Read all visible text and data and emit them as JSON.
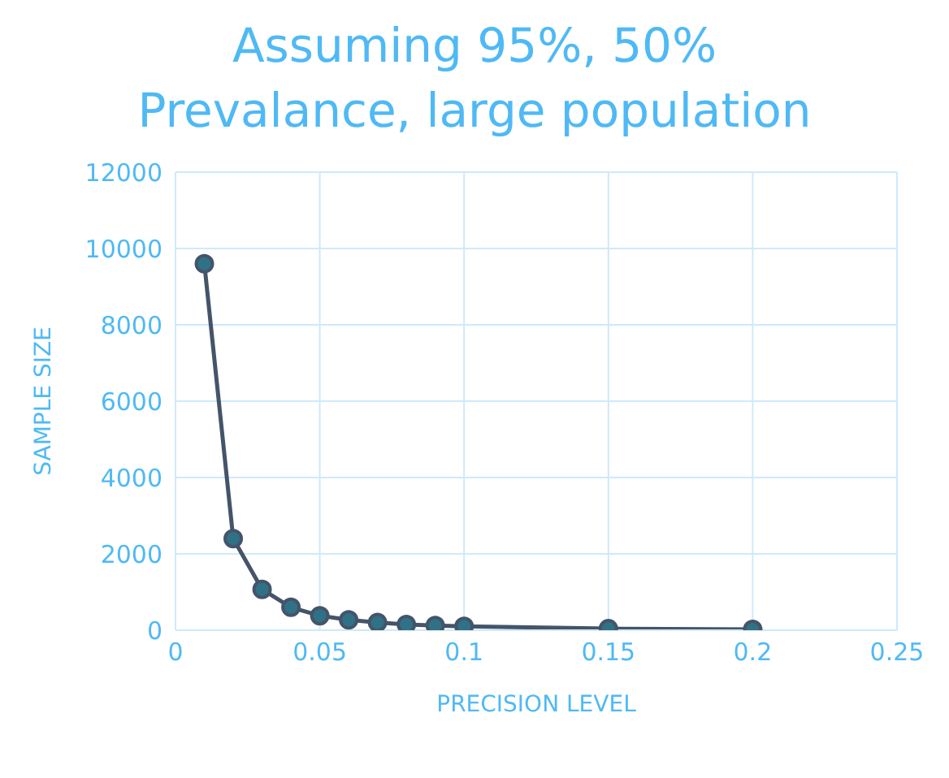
{
  "chart_data": {
    "type": "line",
    "title": "Assuming 95%, 50%\nPrevalance, large population",
    "xlabel": "PRECISION LEVEL",
    "ylabel": "SAMPLE SIZE",
    "x": [
      0.01,
      0.02,
      0.03,
      0.04,
      0.05,
      0.06,
      0.07,
      0.08,
      0.09,
      0.1,
      0.15,
      0.2
    ],
    "series": [
      {
        "color": "#44546a",
        "values": [
          9600,
          2400,
          1070,
          600,
          380,
          270,
          200,
          150,
          120,
          100,
          40,
          20
        ]
      }
    ],
    "xlim": [
      0,
      0.25
    ],
    "xticks": [
      0,
      0.05,
      0.1,
      0.15,
      0.2,
      0.25
    ],
    "ylim": [
      0,
      12000
    ],
    "yticks": [
      0,
      2000,
      4000,
      6000,
      8000,
      10000,
      12000
    ],
    "grid": true,
    "marker": "circle",
    "line_style": "solid",
    "legend": false
  }
}
